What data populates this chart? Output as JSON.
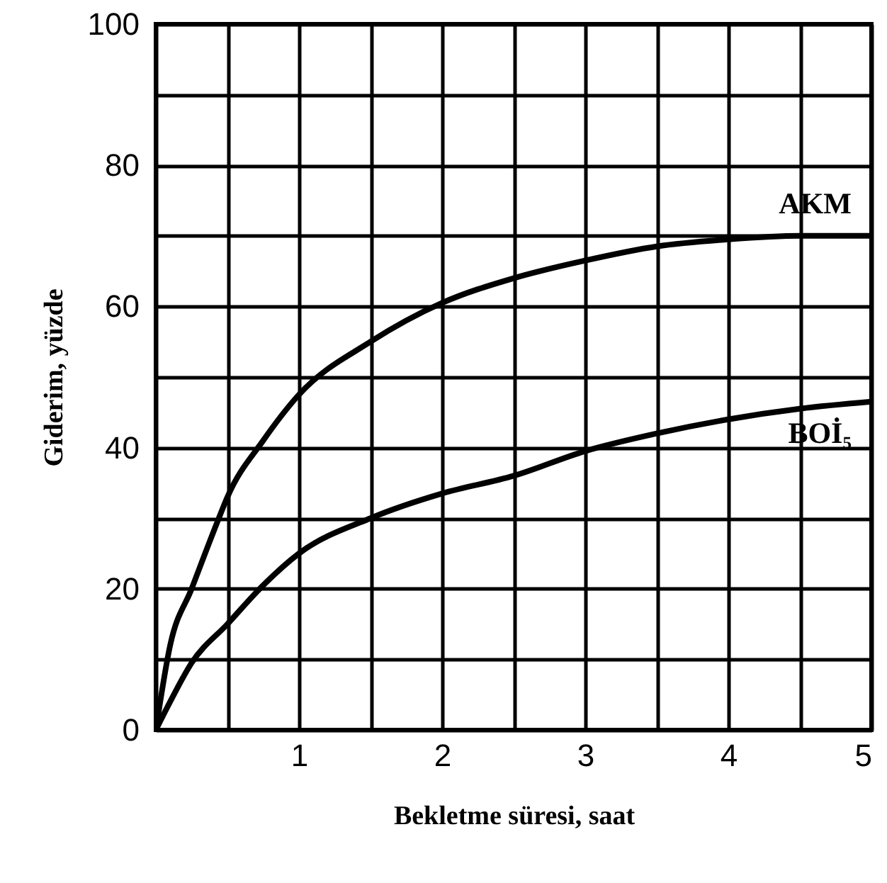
{
  "chart_data": {
    "type": "line",
    "xlabel": "Bekletme süresi, saat",
    "ylabel": "Giderim, yüzde",
    "xlim": [
      0,
      5
    ],
    "ylim": [
      0,
      100
    ],
    "xticks": [
      {
        "value": 0,
        "label": null
      },
      {
        "value": 0.5,
        "label": null
      },
      1,
      {
        "value": 1.5,
        "label": null
      },
      2,
      {
        "value": 2.5,
        "label": null
      },
      3,
      {
        "value": 3.5,
        "label": null
      },
      4,
      {
        "value": 4.5,
        "label": null
      },
      5
    ],
    "yticks": [
      0,
      {
        "value": 10,
        "label": null
      },
      20,
      {
        "value": 30,
        "label": null
      },
      40,
      {
        "value": 50,
        "label": null
      },
      60,
      {
        "value": 70,
        "label": null
      },
      80,
      {
        "value": 90,
        "label": null
      },
      100
    ],
    "grid": true,
    "series": [
      {
        "name": "AKM",
        "color": "#000000",
        "x": [
          0,
          0.1,
          0.25,
          0.44,
          0.5,
          0.75,
          1,
          1.5,
          2,
          2.5,
          3,
          3.5,
          4,
          4.5,
          5
        ],
        "values": [
          0,
          12,
          20,
          30,
          33,
          41,
          47.5,
          55,
          60.5,
          64,
          66.5,
          68.5,
          69.5,
          70,
          70
        ]
      },
      {
        "name": "BOİ₅",
        "color": "#000000",
        "x": [
          0,
          0.1,
          0.25,
          0.5,
          0.75,
          1,
          1.5,
          2,
          2.5,
          3,
          3.5,
          4,
          4.5,
          5
        ],
        "values": [
          0,
          4,
          9.5,
          15,
          20.5,
          25,
          30,
          33.5,
          36,
          39.5,
          42,
          44,
          45.5,
          46.5
        ]
      }
    ]
  }
}
